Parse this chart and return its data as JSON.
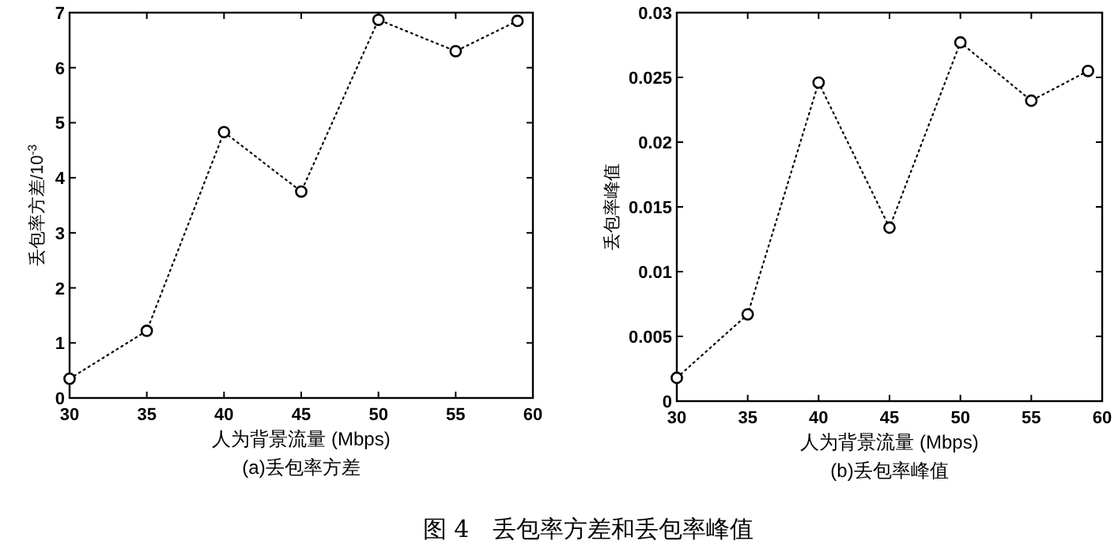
{
  "chart_data": [
    {
      "type": "line",
      "title": "(a)丢包率方差",
      "xlabel": "人为背景流量 (Mbps)",
      "ylabel": "丢包率方差/10$^{-3}$",
      "x": [
        30,
        35,
        40,
        45,
        50,
        55,
        59
      ],
      "series": [
        {
          "color": "#000000",
          "values": [
            0.35,
            1.22,
            4.83,
            3.75,
            6.87,
            6.3,
            6.85
          ]
        }
      ],
      "xlim": [
        30,
        60
      ],
      "xticks": [
        30,
        35,
        40,
        45,
        50,
        55,
        60
      ],
      "ylim": [
        0,
        7
      ],
      "yticks": [
        0,
        1,
        2,
        3,
        4,
        5,
        6,
        7
      ],
      "marker": "circle",
      "line_style": "dotted",
      "grid": false
    },
    {
      "type": "line",
      "title": "(b)丢包率峰值",
      "xlabel": "人为背景流量 (Mbps)",
      "ylabel": "丢包率峰值",
      "x": [
        30,
        35,
        40,
        45,
        50,
        55,
        59
      ],
      "series": [
        {
          "color": "#000000",
          "values": [
            0.0018,
            0.0067,
            0.0246,
            0.0134,
            0.0277,
            0.0232,
            0.0255
          ]
        }
      ],
      "xlim": [
        30,
        60
      ],
      "xticks": [
        30,
        35,
        40,
        45,
        50,
        55,
        60
      ],
      "ylim": [
        0,
        0.03
      ],
      "yticks": [
        0,
        0.005,
        0.01,
        0.015,
        0.02,
        0.025,
        0.03
      ],
      "marker": "circle",
      "line_style": "dotted",
      "grid": false,
      "annotations": [
        "图 4　丢包率方差和丢包率峰值"
      ]
    }
  ]
}
